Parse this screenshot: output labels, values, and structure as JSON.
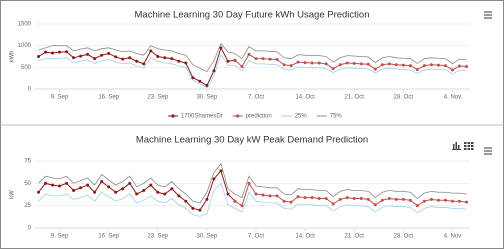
{
  "chart_data": [
    {
      "type": "line",
      "title": "Machine Learning 30 Day Future kWh Usage Prediction",
      "y_label": "kWh",
      "categories": [
        null,
        null,
        null,
        "9. Sep",
        null,
        null,
        null,
        null,
        null,
        null,
        "16. Sep",
        null,
        null,
        null,
        null,
        null,
        null,
        "23. Sep",
        null,
        null,
        null,
        null,
        null,
        null,
        "30. Sep",
        null,
        null,
        null,
        null,
        null,
        null,
        "7. Oct",
        null,
        null,
        null,
        null,
        null,
        null,
        "14. Oct",
        null,
        null,
        null,
        null,
        null,
        null,
        "21. Oct",
        null,
        null,
        null,
        null,
        null,
        null,
        "28. Oct",
        null,
        null,
        null,
        null,
        null,
        null,
        "4. Nov",
        null,
        null
      ],
      "ylim": [
        0,
        1500
      ],
      "yticks": [
        0,
        500,
        1000,
        1500
      ],
      "grid": true,
      "legend": "bottom",
      "series": [
        {
          "name": "1700ShamesDr",
          "color": "#8b1a1a",
          "markers": true,
          "values": [
            750,
            850,
            830,
            850,
            860,
            720,
            760,
            800,
            700,
            780,
            820,
            740,
            690,
            720,
            640,
            580,
            880,
            750,
            720,
            700,
            640,
            600,
            260,
            180,
            80,
            420,
            950,
            640,
            660,
            null,
            null,
            null,
            null,
            null,
            null,
            null,
            null,
            null,
            null,
            null,
            null,
            null,
            null,
            null,
            null,
            null,
            null,
            null,
            null,
            null,
            null,
            null,
            null,
            null,
            null,
            null,
            null,
            null,
            null,
            null,
            null,
            null
          ]
        },
        {
          "name": "prediction",
          "color": "#c0504d",
          "markers": true,
          "values": [
            null,
            null,
            null,
            null,
            null,
            null,
            null,
            null,
            null,
            null,
            null,
            null,
            null,
            null,
            null,
            null,
            null,
            null,
            null,
            null,
            null,
            null,
            null,
            null,
            null,
            null,
            null,
            null,
            660,
            520,
            800,
            700,
            700,
            690,
            680,
            560,
            540,
            620,
            610,
            600,
            600,
            580,
            470,
            560,
            600,
            590,
            580,
            570,
            460,
            560,
            580,
            560,
            550,
            540,
            450,
            540,
            560,
            550,
            540,
            440,
            530,
            520
          ]
        },
        {
          "name": "25%",
          "color": "#9fd0ea",
          "markers": false,
          "values": [
            650,
            700,
            700,
            710,
            720,
            600,
            640,
            670,
            590,
            650,
            680,
            620,
            580,
            600,
            530,
            480,
            720,
            640,
            600,
            580,
            530,
            500,
            200,
            130,
            30,
            300,
            780,
            540,
            540,
            420,
            660,
            580,
            580,
            570,
            560,
            460,
            440,
            510,
            500,
            490,
            490,
            470,
            380,
            460,
            490,
            480,
            470,
            460,
            370,
            460,
            480,
            460,
            450,
            440,
            360,
            440,
            460,
            450,
            440,
            350,
            430,
            420
          ]
        },
        {
          "name": "75%",
          "color": "#8a8a8a",
          "markers": false,
          "values": [
            900,
            950,
            1000,
            1000,
            1000,
            880,
            920,
            950,
            880,
            930,
            950,
            900,
            860,
            880,
            820,
            780,
            1000,
            930,
            900,
            880,
            820,
            780,
            560,
            480,
            400,
            650,
            1050,
            850,
            820,
            700,
            980,
            880,
            880,
            870,
            860,
            720,
            700,
            790,
            780,
            770,
            770,
            750,
            620,
            720,
            770,
            760,
            750,
            740,
            610,
            720,
            750,
            720,
            710,
            700,
            590,
            700,
            720,
            710,
            700,
            580,
            690,
            680
          ]
        }
      ]
    },
    {
      "type": "line",
      "title": "Machine Learning 30 Day kW Peak Demand Prediction",
      "y_label": "kW",
      "categories": [
        null,
        null,
        null,
        "9. Sep",
        null,
        null,
        null,
        null,
        null,
        null,
        "16. Sep",
        null,
        null,
        null,
        null,
        null,
        null,
        "23. Sep",
        null,
        null,
        null,
        null,
        null,
        null,
        "30. Sep",
        null,
        null,
        null,
        null,
        null,
        null,
        "7. Oct",
        null,
        null,
        null,
        null,
        null,
        null,
        "14. Oct",
        null,
        null,
        null,
        null,
        null,
        null,
        "21. Oct",
        null,
        null,
        null,
        null,
        null,
        null,
        "28. Oct",
        null,
        null,
        null,
        null,
        null,
        null,
        "4. Nov",
        null,
        null
      ],
      "ylim": [
        0,
        75
      ],
      "yticks": [
        0,
        25,
        50,
        75
      ],
      "grid": true,
      "series": [
        {
          "color": "#8b1a1a",
          "markers": true,
          "values": [
            40,
            50,
            48,
            47,
            50,
            42,
            45,
            48,
            40,
            52,
            46,
            40,
            44,
            50,
            38,
            42,
            48,
            40,
            38,
            44,
            36,
            30,
            22,
            20,
            32,
            55,
            64,
            38,
            30,
            null,
            null,
            null,
            null,
            null,
            null,
            null,
            null,
            null,
            null,
            null,
            null,
            null,
            null,
            null,
            null,
            null,
            null,
            null,
            null,
            null,
            null,
            null,
            null,
            null,
            null,
            null,
            null,
            null,
            null,
            null,
            null,
            null
          ]
        },
        {
          "color": "#c0504d",
          "markers": true,
          "values": [
            null,
            null,
            null,
            null,
            null,
            null,
            null,
            null,
            null,
            null,
            null,
            null,
            null,
            null,
            null,
            null,
            null,
            null,
            null,
            null,
            null,
            null,
            null,
            null,
            null,
            null,
            null,
            null,
            30,
            25,
            50,
            38,
            37,
            36,
            36,
            30,
            29,
            35,
            34,
            34,
            33,
            33,
            27,
            32,
            34,
            33,
            33,
            32,
            26,
            31,
            33,
            32,
            32,
            31,
            25,
            30,
            32,
            31,
            31,
            30,
            30,
            29
          ]
        },
        {
          "color": "#9fd0ea",
          "markers": false,
          "values": [
            30,
            38,
            36,
            36,
            38,
            32,
            34,
            37,
            30,
            40,
            35,
            30,
            33,
            38,
            28,
            31,
            36,
            30,
            28,
            33,
            26,
            22,
            15,
            13,
            16,
            42,
            50,
            26,
            22,
            18,
            40,
            30,
            29,
            28,
            28,
            22,
            21,
            27,
            26,
            26,
            25,
            25,
            19,
            24,
            26,
            25,
            25,
            24,
            18,
            23,
            25,
            24,
            24,
            23,
            17,
            22,
            24,
            23,
            23,
            22,
            22,
            21
          ]
        },
        {
          "color": "#8a8a8a",
          "markers": false,
          "values": [
            50,
            58,
            56,
            55,
            58,
            50,
            53,
            56,
            48,
            60,
            54,
            48,
            52,
            58,
            46,
            50,
            56,
            48,
            46,
            52,
            44,
            38,
            30,
            28,
            40,
            62,
            72,
            44,
            38,
            34,
            58,
            47,
            46,
            45,
            45,
            38,
            37,
            44,
            43,
            43,
            42,
            42,
            35,
            41,
            43,
            42,
            42,
            41,
            34,
            40,
            42,
            41,
            41,
            40,
            33,
            39,
            41,
            40,
            40,
            39,
            39,
            38
          ]
        }
      ]
    }
  ]
}
